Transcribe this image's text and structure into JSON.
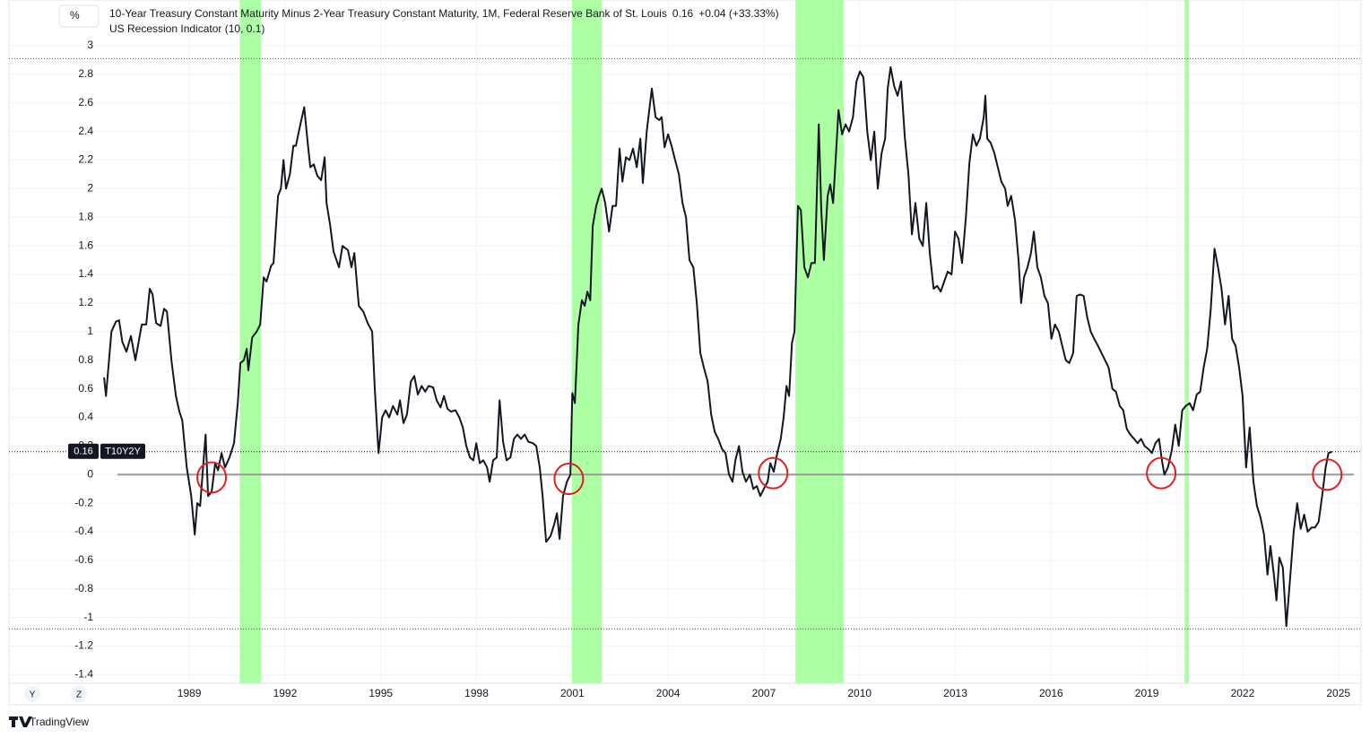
{
  "chart_data": {
    "type": "line",
    "title": "10-Year Treasury Constant Maturity Minus 2-Year Treasury Constant Maturity, 1M, Federal Reserve Bank of St. Louis",
    "last_value": "0.16",
    "change": "+0.04 (+33.33%)",
    "indicator": "US Recession Indicator (10, 0.1)",
    "unit": "%",
    "symbol": "T10Y2Y",
    "scale_buttons": [
      "Y",
      "Z"
    ],
    "brand": "TradingView",
    "xlim": [
      1983.35,
      2025.71
    ],
    "ylim": [
      -1.46,
      3.32
    ],
    "xticks": [
      1989,
      1992,
      1995,
      1998,
      2001,
      2004,
      2007,
      2010,
      2013,
      2016,
      2019,
      2022,
      2025
    ],
    "yticks": [
      3,
      2.8,
      2.6,
      2.4,
      2.2,
      2,
      1.8,
      1.6,
      1.4,
      1.2,
      1,
      0.8,
      0.6,
      0.4,
      0.2,
      0,
      -0.2,
      -0.4,
      -0.6,
      -0.8,
      -1,
      -1.2,
      -1.4
    ],
    "grid": true,
    "baseline": 0,
    "high_line": 2.91,
    "low_line": -1.08,
    "recession_color": "#adffa4",
    "recessions": [
      [
        1990.58,
        1991.25
      ],
      [
        2000.99,
        2001.92
      ],
      [
        2007.99,
        2009.5
      ],
      [
        2020.18,
        2020.32
      ]
    ],
    "circles": [
      {
        "x": 1989.7,
        "y": -0.02
      },
      {
        "x": 2000.89,
        "y": -0.03
      },
      {
        "x": 2007.29,
        "y": 0.01
      },
      {
        "x": 2019.45,
        "y": 0.01
      },
      {
        "x": 2024.65,
        "y": 0
      }
    ],
    "circle_color": "#e02020",
    "x": [
      1986.33,
      1986.39,
      1986.56,
      1986.7,
      1986.8,
      1986.9,
      1987.03,
      1987.17,
      1987.31,
      1987.51,
      1987.65,
      1987.76,
      1987.85,
      1987.96,
      1988.1,
      1988.21,
      1988.3,
      1988.44,
      1988.58,
      1988.69,
      1988.78,
      1988.92,
      1989.06,
      1989.17,
      1989.25,
      1989.34,
      1989.51,
      1989.59,
      1989.7,
      1989.81,
      1989.9,
      1990.01,
      1990.12,
      1990.26,
      1990.4,
      1990.52,
      1990.6,
      1990.71,
      1990.8,
      1990.85,
      1990.97,
      1991.11,
      1991.22,
      1991.33,
      1991.42,
      1991.56,
      1991.64,
      1991.78,
      1991.87,
      1991.95,
      1992.03,
      1992.15,
      1992.26,
      1992.34,
      1992.48,
      1992.6,
      1992.71,
      1992.79,
      1992.9,
      1993.01,
      1993.13,
      1993.24,
      1993.3,
      1993.41,
      1993.52,
      1993.69,
      1993.8,
      1993.97,
      1994.08,
      1994.17,
      1994.31,
      1994.45,
      1994.59,
      1994.73,
      1994.81,
      1994.93,
      1995.04,
      1995.15,
      1995.26,
      1995.38,
      1995.52,
      1995.6,
      1995.71,
      1995.82,
      1995.94,
      1996.05,
      1996.16,
      1996.28,
      1996.39,
      1996.5,
      1996.64,
      1996.75,
      1996.87,
      1996.98,
      1997.09,
      1997.2,
      1997.34,
      1997.46,
      1997.57,
      1997.68,
      1997.79,
      1997.9,
      1997.99,
      1998.1,
      1998.21,
      1998.33,
      1998.41,
      1998.52,
      1998.63,
      1998.72,
      1998.83,
      1998.94,
      1999.06,
      1999.17,
      1999.28,
      1999.39,
      1999.51,
      1999.62,
      1999.76,
      1999.87,
      1999.98,
      2000.07,
      2000.18,
      2000.32,
      2000.43,
      2000.52,
      2000.6,
      2000.71,
      2000.83,
      2000.94,
      2001.0,
      2001.08,
      2001.19,
      2001.3,
      2001.39,
      2001.47,
      2001.56,
      2001.64,
      2001.75,
      2001.84,
      2001.92,
      2002.03,
      2002.15,
      2002.26,
      2002.37,
      2002.48,
      2002.57,
      2002.68,
      2002.79,
      2002.9,
      2003.02,
      2003.13,
      2003.21,
      2003.33,
      2003.49,
      2003.61,
      2003.72,
      2003.8,
      2003.89,
      2004.0,
      2004.11,
      2004.22,
      2004.34,
      2004.45,
      2004.56,
      2004.67,
      2004.79,
      2004.9,
      2005.01,
      2005.12,
      2005.24,
      2005.35,
      2005.46,
      2005.57,
      2005.69,
      2005.8,
      2005.91,
      2006.02,
      2006.11,
      2006.22,
      2006.33,
      2006.44,
      2006.56,
      2006.67,
      2006.78,
      2006.89,
      2007.0,
      2007.12,
      2007.2,
      2007.31,
      2007.42,
      2007.53,
      2007.62,
      2007.71,
      2007.79,
      2007.88,
      2007.96,
      2008.07,
      2008.16,
      2008.27,
      2008.38,
      2008.49,
      2008.6,
      2008.72,
      2008.8,
      2008.88,
      2009.0,
      2009.08,
      2009.17,
      2009.25,
      2009.34,
      2009.45,
      2009.56,
      2009.67,
      2009.79,
      2009.9,
      2010.01,
      2010.12,
      2010.24,
      2010.35,
      2010.46,
      2010.57,
      2010.69,
      2010.8,
      2010.88,
      2010.97,
      2011.08,
      2011.19,
      2011.3,
      2011.42,
      2011.53,
      2011.64,
      2011.75,
      2011.87,
      2011.98,
      2012.09,
      2012.2,
      2012.32,
      2012.43,
      2012.54,
      2012.65,
      2012.76,
      2012.88,
      2012.99,
      2013.1,
      2013.21,
      2013.33,
      2013.44,
      2013.55,
      2013.66,
      2013.77,
      2013.89,
      2013.94,
      2014.0,
      2014.11,
      2014.22,
      2014.33,
      2014.44,
      2014.56,
      2014.64,
      2014.75,
      2014.87,
      2014.98,
      2015.06,
      2015.15,
      2015.26,
      2015.37,
      2015.46,
      2015.57,
      2015.68,
      2015.79,
      2015.9,
      2016.01,
      2016.12,
      2016.24,
      2016.35,
      2016.46,
      2016.57,
      2016.69,
      2016.8,
      2016.91,
      2017.02,
      2017.13,
      2017.24,
      2017.35,
      2017.47,
      2017.58,
      2017.69,
      2017.8,
      2017.92,
      2018.03,
      2018.15,
      2018.26,
      2018.37,
      2018.48,
      2018.6,
      2018.71,
      2018.82,
      2018.93,
      2019.04,
      2019.16,
      2019.27,
      2019.38,
      2019.47,
      2019.55,
      2019.66,
      2019.78,
      2019.89,
      2020.0,
      2020.11,
      2020.22,
      2020.34,
      2020.45,
      2020.56,
      2020.67,
      2020.78,
      2020.89,
      2021.0,
      2021.12,
      2021.23,
      2021.34,
      2021.45,
      2021.56,
      2021.67,
      2021.78,
      2021.89,
      2022.0,
      2022.11,
      2022.22,
      2022.34,
      2022.45,
      2022.56,
      2022.67,
      2022.78,
      2022.87,
      2022.98,
      2023.06,
      2023.15,
      2023.26,
      2023.37,
      2023.48,
      2023.6,
      2023.71,
      2023.82,
      2023.93,
      2024.04,
      2024.16,
      2024.27,
      2024.38,
      2024.49,
      2024.6,
      2024.69,
      2024.8
    ],
    "series": [
      {
        "name": "T10Y2Y",
        "color": "#131722",
        "values": [
          0.68,
          0.55,
          1.0,
          1.07,
          1.08,
          0.93,
          0.86,
          0.97,
          0.8,
          1.05,
          1.05,
          1.3,
          1.26,
          1.06,
          1.04,
          1.16,
          1.14,
          0.8,
          0.55,
          0.44,
          0.38,
          0.05,
          -0.15,
          -0.42,
          -0.2,
          -0.22,
          0.28,
          -0.15,
          -0.12,
          0.08,
          0.03,
          0.15,
          0.05,
          0.12,
          0.22,
          0.5,
          0.78,
          0.8,
          0.88,
          0.73,
          0.96,
          1.0,
          1.05,
          1.38,
          1.35,
          1.46,
          1.48,
          1.95,
          2.0,
          2.2,
          2.0,
          2.1,
          2.3,
          2.3,
          2.45,
          2.57,
          2.32,
          2.15,
          2.17,
          2.09,
          2.06,
          2.22,
          1.9,
          1.75,
          1.56,
          1.45,
          1.6,
          1.57,
          1.45,
          1.55,
          1.18,
          1.14,
          1.06,
          1.0,
          0.6,
          0.15,
          0.4,
          0.45,
          0.4,
          0.48,
          0.42,
          0.52,
          0.36,
          0.42,
          0.65,
          0.69,
          0.56,
          0.62,
          0.58,
          0.62,
          0.61,
          0.52,
          0.47,
          0.55,
          0.46,
          0.44,
          0.45,
          0.4,
          0.33,
          0.2,
          0.12,
          0.1,
          0.22,
          0.08,
          0.1,
          0.05,
          -0.05,
          0.1,
          0.12,
          0.52,
          0.23,
          0.1,
          0.12,
          0.25,
          0.28,
          0.25,
          0.28,
          0.23,
          0.22,
          0.2,
          0.05,
          -0.15,
          -0.47,
          -0.43,
          -0.35,
          -0.27,
          -0.45,
          -0.15,
          -0.05,
          0.0,
          0.57,
          0.5,
          1.05,
          1.22,
          1.18,
          1.28,
          1.22,
          1.74,
          1.88,
          1.95,
          2.0,
          1.9,
          1.7,
          1.88,
          1.88,
          2.28,
          2.05,
          2.22,
          2.2,
          2.28,
          2.15,
          2.35,
          2.04,
          2.4,
          2.7,
          2.5,
          2.48,
          2.5,
          2.29,
          2.38,
          2.3,
          2.2,
          2.1,
          1.9,
          1.8,
          1.5,
          1.45,
          1.2,
          0.85,
          0.75,
          0.65,
          0.42,
          0.3,
          0.25,
          0.18,
          0.15,
          0.0,
          -0.05,
          0.1,
          0.2,
          0.02,
          -0.05,
          0.0,
          -0.1,
          -0.08,
          -0.15,
          -0.1,
          -0.05,
          0.08,
          0.02,
          0.15,
          0.25,
          0.4,
          0.62,
          0.55,
          0.92,
          1.0,
          1.88,
          1.85,
          1.45,
          1.38,
          1.48,
          1.48,
          2.45,
          1.85,
          1.5,
          1.95,
          2.03,
          1.9,
          2.2,
          2.55,
          2.38,
          2.45,
          2.4,
          2.5,
          2.75,
          2.82,
          2.78,
          2.4,
          2.2,
          2.4,
          2.0,
          2.25,
          2.35,
          2.7,
          2.85,
          2.72,
          2.65,
          2.75,
          2.35,
          2.1,
          1.68,
          1.9,
          1.65,
          1.6,
          1.9,
          1.55,
          1.3,
          1.32,
          1.28,
          1.35,
          1.42,
          1.4,
          1.7,
          1.65,
          1.48,
          1.8,
          2.18,
          2.38,
          2.3,
          2.35,
          2.5,
          2.65,
          2.35,
          2.32,
          2.25,
          2.15,
          2.05,
          2.0,
          1.88,
          1.95,
          1.78,
          1.5,
          1.2,
          1.38,
          1.45,
          1.55,
          1.7,
          1.45,
          1.38,
          1.25,
          1.2,
          0.95,
          1.05,
          1.0,
          0.9,
          0.8,
          0.78,
          0.85,
          1.25,
          1.26,
          1.25,
          1.1,
          1.0,
          0.95,
          0.9,
          0.85,
          0.8,
          0.75,
          0.6,
          0.58,
          0.48,
          0.45,
          0.32,
          0.28,
          0.25,
          0.22,
          0.25,
          0.2,
          0.18,
          0.15,
          0.22,
          0.25,
          0.1,
          0.0,
          0.05,
          0.17,
          0.35,
          0.2,
          0.45,
          0.48,
          0.5,
          0.45,
          0.56,
          0.58,
          0.75,
          0.88,
          1.15,
          1.58,
          1.45,
          1.3,
          1.05,
          1.25,
          0.95,
          0.9,
          0.75,
          0.55,
          0.05,
          0.33,
          -0.05,
          -0.22,
          -0.3,
          -0.42,
          -0.7,
          -0.5,
          -0.7,
          -0.88,
          -0.58,
          -0.65,
          -1.06,
          -0.75,
          -0.4,
          -0.2,
          -0.38,
          -0.28,
          -0.4,
          -0.37,
          -0.37,
          -0.33,
          -0.15,
          0.05,
          0.15,
          0.16
        ]
      }
    ]
  }
}
